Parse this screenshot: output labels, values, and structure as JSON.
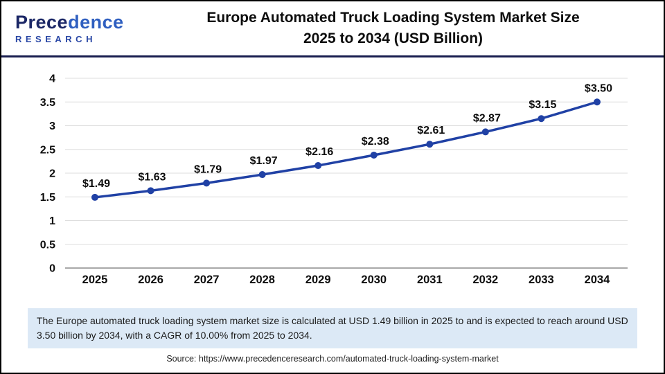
{
  "header": {
    "logo": {
      "brand_part1": "Prece",
      "brand_part2": "dence",
      "brand_bottom": "RESEARCH"
    },
    "title_line1": "Europe Automated Truck Loading System Market Size",
    "title_line2": "2025 to 2034 (USD Billion)"
  },
  "chart_data": {
    "type": "line",
    "title": "Europe Automated Truck Loading System Market Size 2025 to 2034 (USD Billion)",
    "categories": [
      "2025",
      "2026",
      "2027",
      "2028",
      "2029",
      "2030",
      "2031",
      "2032",
      "2033",
      "2034"
    ],
    "series": [
      {
        "name": "Europe Automated Truck Loading System Market Size (USD Billion)",
        "values": [
          1.49,
          1.63,
          1.79,
          1.97,
          2.16,
          2.38,
          2.61,
          2.87,
          3.15,
          3.5
        ]
      }
    ],
    "data_labels": [
      "$1.49",
      "$1.63",
      "$1.79",
      "$1.97",
      "$2.16",
      "$2.38",
      "$2.61",
      "$2.87",
      "$3.15",
      "$3.50"
    ],
    "xlabel": "",
    "ylabel": "",
    "ylim": [
      0,
      4
    ],
    "ytick_step": 0.5,
    "yticks": [
      "0",
      "0.5",
      "1",
      "1.5",
      "2",
      "2.5",
      "3",
      "3.5",
      "4"
    ],
    "grid": "horizontal",
    "legend_position": "none",
    "line_color": "#2041a5",
    "marker": "circle",
    "gridline_color": "#dddddd",
    "baseline_color": "#a8a8a8",
    "label_color": "#0d0d0d"
  },
  "footer": {
    "summary": "The Europe automated truck loading system market  size is calculated at USD 1.49 billion in 2025 to and is expected to reach around USD 3.50 billion by 2034, with a CAGR of 10.00% from 2025 to 2034.",
    "source": "Source: https://www.precedenceresearch.com/automated-truck-loading-system-market"
  },
  "colors": {
    "header_rule": "#181d4e",
    "frame_border": "#000000",
    "summary_bg": "#dce9f6",
    "logo_navy": "#1b2766",
    "logo_blue": "#2f5fc0"
  }
}
